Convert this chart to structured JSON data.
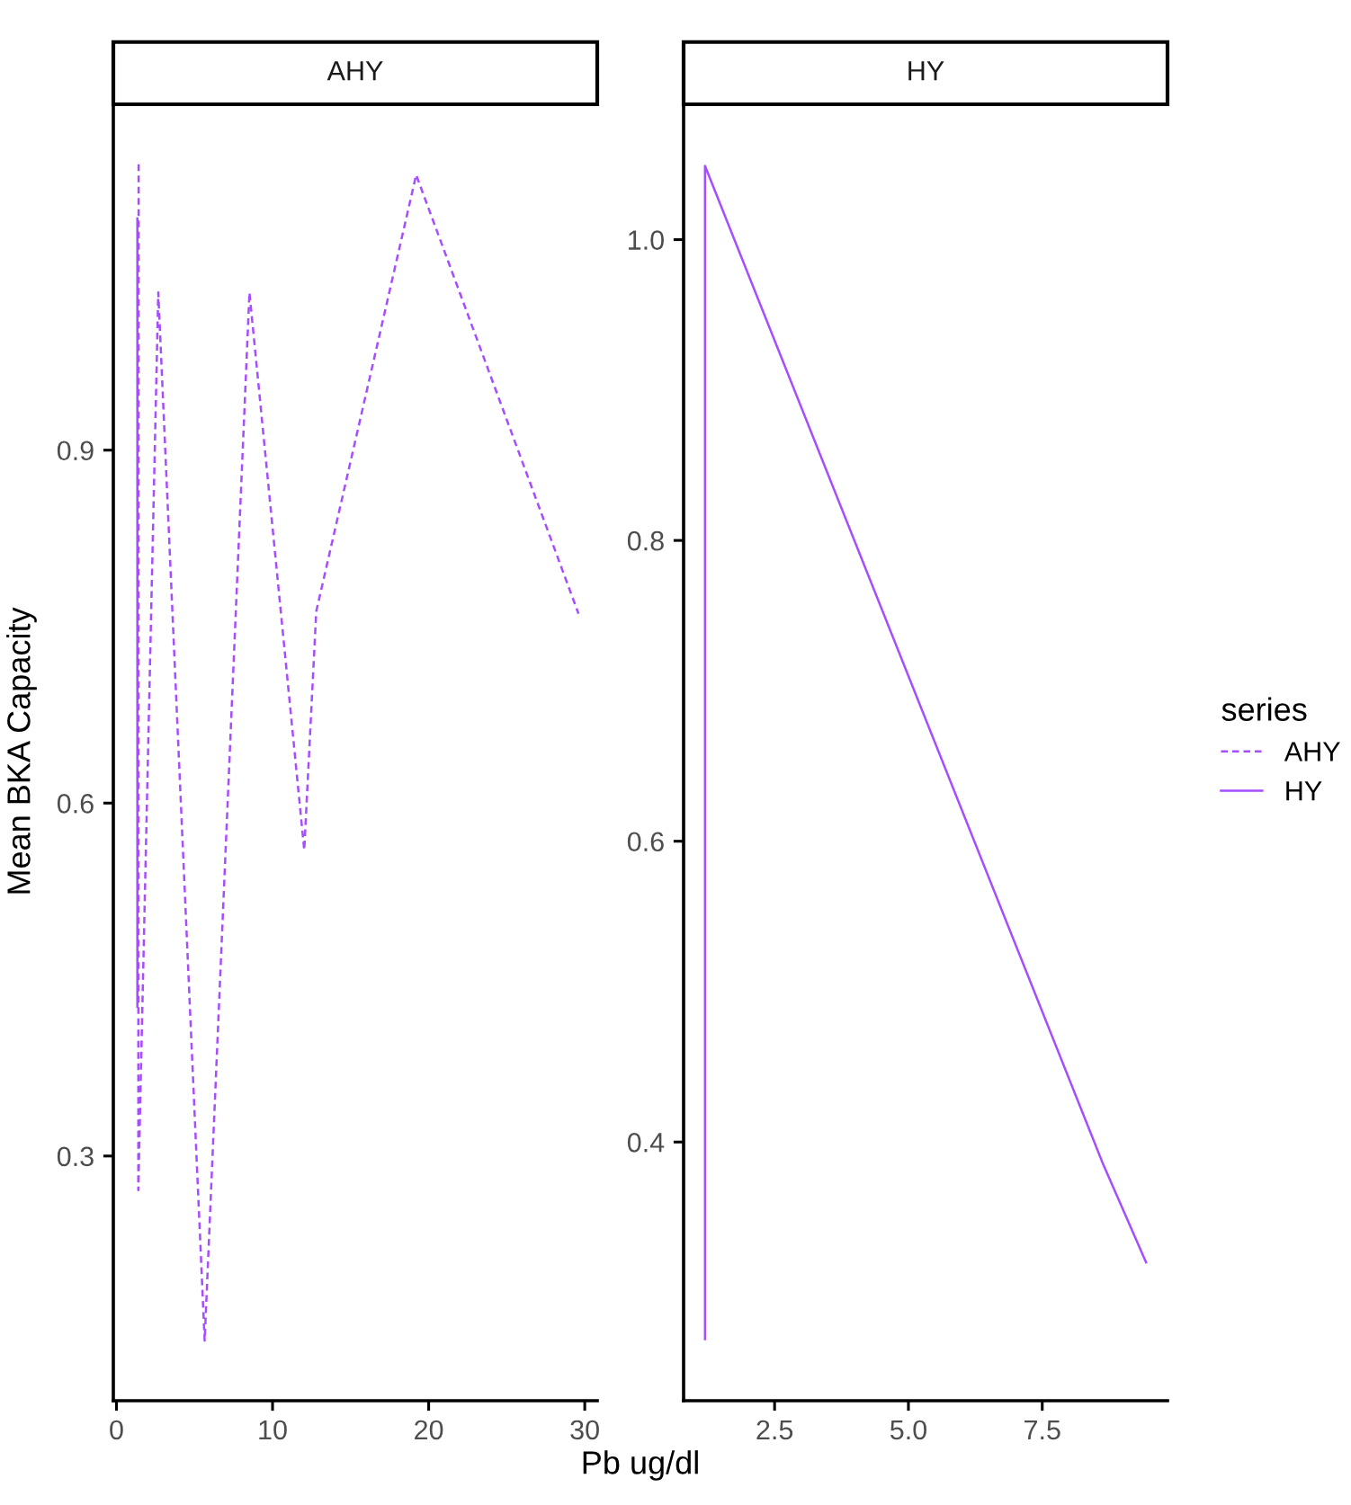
{
  "chart_data": [
    {
      "type": "line",
      "title": "AHY",
      "xlabel": "Pb ug/dl",
      "ylabel": "Mean BKA Capacity",
      "xlim": [
        -0.2,
        30.8
      ],
      "ylim": [
        0.092,
        1.194
      ],
      "xticks": [
        0,
        10,
        20,
        30
      ],
      "yticks": [
        0.3,
        0.6,
        0.9
      ],
      "grid": false,
      "legend": "right",
      "legend_title": "series",
      "series": [
        {
          "name": "AHY",
          "color": "#a64dff",
          "line_style": "dashed",
          "x": [
            1.42,
            1.4,
            2.68,
            5.65,
            8.52,
            12.03,
            12.8,
            19.2,
            29.6
          ],
          "values": [
            1.143,
            0.271,
            1.034,
            0.143,
            1.034,
            0.56,
            0.763,
            1.134,
            0.761
          ]
        },
        {
          "name": "HY",
          "color": "#a64dff",
          "line_style": "solid",
          "x": [
            1.34,
            1.34
          ],
          "values": [
            1.097,
            0.427
          ]
        }
      ]
    },
    {
      "type": "line",
      "title": "HY",
      "xlim": [
        0.8,
        9.84
      ],
      "ylim": [
        0.228,
        1.09
      ],
      "xticks": [
        {
          "value": 2.5,
          "label": "2.5"
        },
        {
          "value": 5,
          "label": "5.0"
        },
        {
          "value": 7.5,
          "label": "7.5"
        }
      ],
      "yticks": [
        {
          "value": 0.4,
          "label": "0.4"
        },
        {
          "value": 0.6,
          "label": "0.6"
        },
        {
          "value": 0.8,
          "label": "0.8"
        },
        {
          "value": 1,
          "label": "1.0"
        }
      ],
      "grid": false,
      "series": [
        {
          "color": "#a64dff",
          "line_style": "solid",
          "x": [
            1.2,
            1.2,
            8.64,
            9.44
          ],
          "values": [
            0.269,
            1.049,
            0.385,
            0.32
          ]
        }
      ]
    }
  ]
}
